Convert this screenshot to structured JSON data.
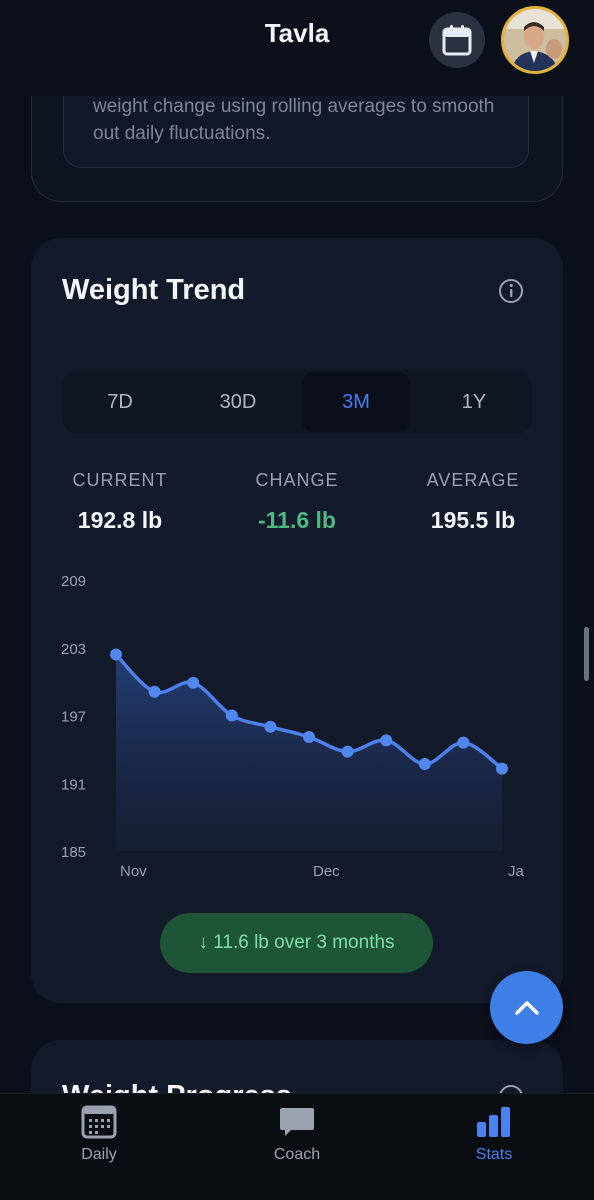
{
  "header": {
    "title": "Tavla",
    "calendar_icon": "calendar-icon",
    "avatar": "user-avatar"
  },
  "info_card": {
    "text": "weight change using rolling averages to smooth out daily fluctuations."
  },
  "weight_trend": {
    "title": "Weight Trend",
    "info_icon": "info-icon",
    "ranges": [
      "7D",
      "30D",
      "3M",
      "1Y"
    ],
    "active_range": "3M",
    "stats": {
      "current_label": "CURRENT",
      "current_value": "192.8 lb",
      "change_label": "CHANGE",
      "change_value": "-11.6 lb",
      "average_label": "AVERAGE",
      "average_value": "195.5 lb"
    },
    "summary_pill": "↓ 11.6 lb over 3 months",
    "accent_color": "#4a7df0",
    "positive_color": "#4fb985"
  },
  "chart_data": {
    "type": "area",
    "y_ticks": [
      "209",
      "203",
      "197",
      "191",
      "185"
    ],
    "x_ticks": [
      "Nov",
      "Dec",
      "Ja"
    ],
    "ylim": [
      185,
      209
    ],
    "y": [
      202.4,
      199.1,
      199.9,
      197.0,
      196.0,
      195.1,
      193.8,
      194.8,
      192.7,
      194.6,
      192.3
    ],
    "grid": false
  },
  "weight_progress": {
    "title": "Weight Progress"
  },
  "fab": {
    "icon": "chevron-up-icon"
  },
  "nav": {
    "items": [
      {
        "label": "Daily",
        "icon": "calendar-grid-icon"
      },
      {
        "label": "Coach",
        "icon": "chat-bubble-icon"
      },
      {
        "label": "Stats",
        "icon": "bar-chart-icon"
      }
    ],
    "active": "Stats"
  }
}
